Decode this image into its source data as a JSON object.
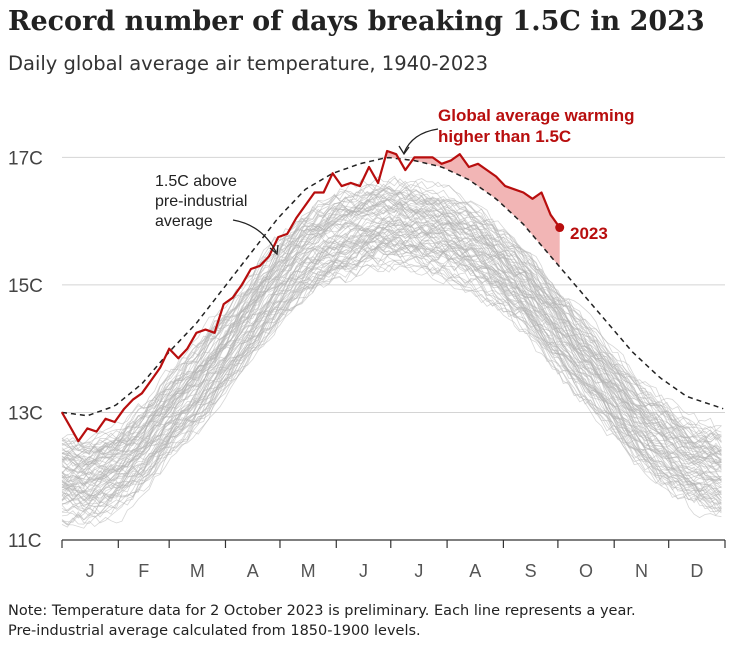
{
  "chart_data": {
    "type": "line",
    "title": "Record number of days breaking 1.5C in 2023",
    "subtitle": "Daily global average air temperature, 1940-2023",
    "y_tick_labels": [
      "11C",
      "13C",
      "15C",
      "17C"
    ],
    "y_ticks": [
      11,
      13,
      15,
      17
    ],
    "ylim": [
      11,
      17.9
    ],
    "x_tick_labels": [
      "J",
      "F",
      "M",
      "A",
      "M",
      "J",
      "J",
      "A",
      "S",
      "O",
      "N",
      "D"
    ],
    "xlim": [
      1,
      366
    ],
    "grid": true,
    "colors": {
      "highlight": "#b80e0e",
      "fill": "#f0a8a8",
      "history": "#b4b4b4",
      "grid": "#d4d4d4",
      "threshold": "#222222"
    },
    "annotations": {
      "warming_line1": "Global average warming",
      "warming_line2": "higher than 1.5C",
      "threshold_line1": "1.5C above",
      "threshold_line2": "pre-industrial",
      "threshold_line3": "average",
      "end_label": "2023"
    },
    "series": [
      {
        "name": "2023",
        "x": [
          1,
          5,
          10,
          15,
          20,
          25,
          30,
          35,
          40,
          45,
          50,
          55,
          60,
          65,
          70,
          75,
          80,
          85,
          90,
          95,
          100,
          105,
          110,
          115,
          120,
          125,
          130,
          135,
          140,
          145,
          150,
          155,
          160,
          165,
          170,
          175,
          180,
          185,
          190,
          195,
          200,
          205,
          210,
          215,
          220,
          225,
          230,
          235,
          240,
          245,
          250,
          255,
          260,
          265,
          270,
          275
        ],
        "y": [
          13.0,
          12.8,
          12.55,
          12.75,
          12.7,
          12.9,
          12.85,
          13.05,
          13.2,
          13.3,
          13.5,
          13.7,
          14.0,
          13.85,
          14.0,
          14.25,
          14.3,
          14.25,
          14.7,
          14.8,
          15.0,
          15.25,
          15.3,
          15.45,
          15.75,
          15.8,
          16.05,
          16.25,
          16.45,
          16.45,
          16.75,
          16.55,
          16.6,
          16.55,
          16.85,
          16.6,
          17.1,
          17.05,
          16.8,
          17.0,
          17.0,
          17.0,
          16.9,
          16.95,
          17.05,
          16.85,
          16.9,
          16.8,
          16.7,
          16.55,
          16.5,
          16.45,
          16.35,
          16.45,
          16.1,
          15.9
        ]
      },
      {
        "name": "1.5C above pre-industrial average",
        "x": [
          1,
          15,
          30,
          45,
          60,
          75,
          90,
          105,
          120,
          135,
          150,
          165,
          180,
          195,
          210,
          225,
          240,
          255,
          270,
          285,
          300,
          315,
          330,
          345,
          366
        ],
        "y": [
          13.0,
          12.95,
          13.1,
          13.45,
          13.95,
          14.4,
          14.95,
          15.5,
          16.05,
          16.5,
          16.75,
          16.9,
          17.0,
          16.95,
          16.85,
          16.65,
          16.35,
          15.95,
          15.45,
          14.95,
          14.45,
          13.95,
          13.55,
          13.25,
          13.05
        ]
      }
    ]
  },
  "note": {
    "line1": "Note: Temperature data for 2 October 2023 is preliminary. Each line represents a year.",
    "line2": "Pre-industrial average calculated from 1850-1900 levels."
  }
}
